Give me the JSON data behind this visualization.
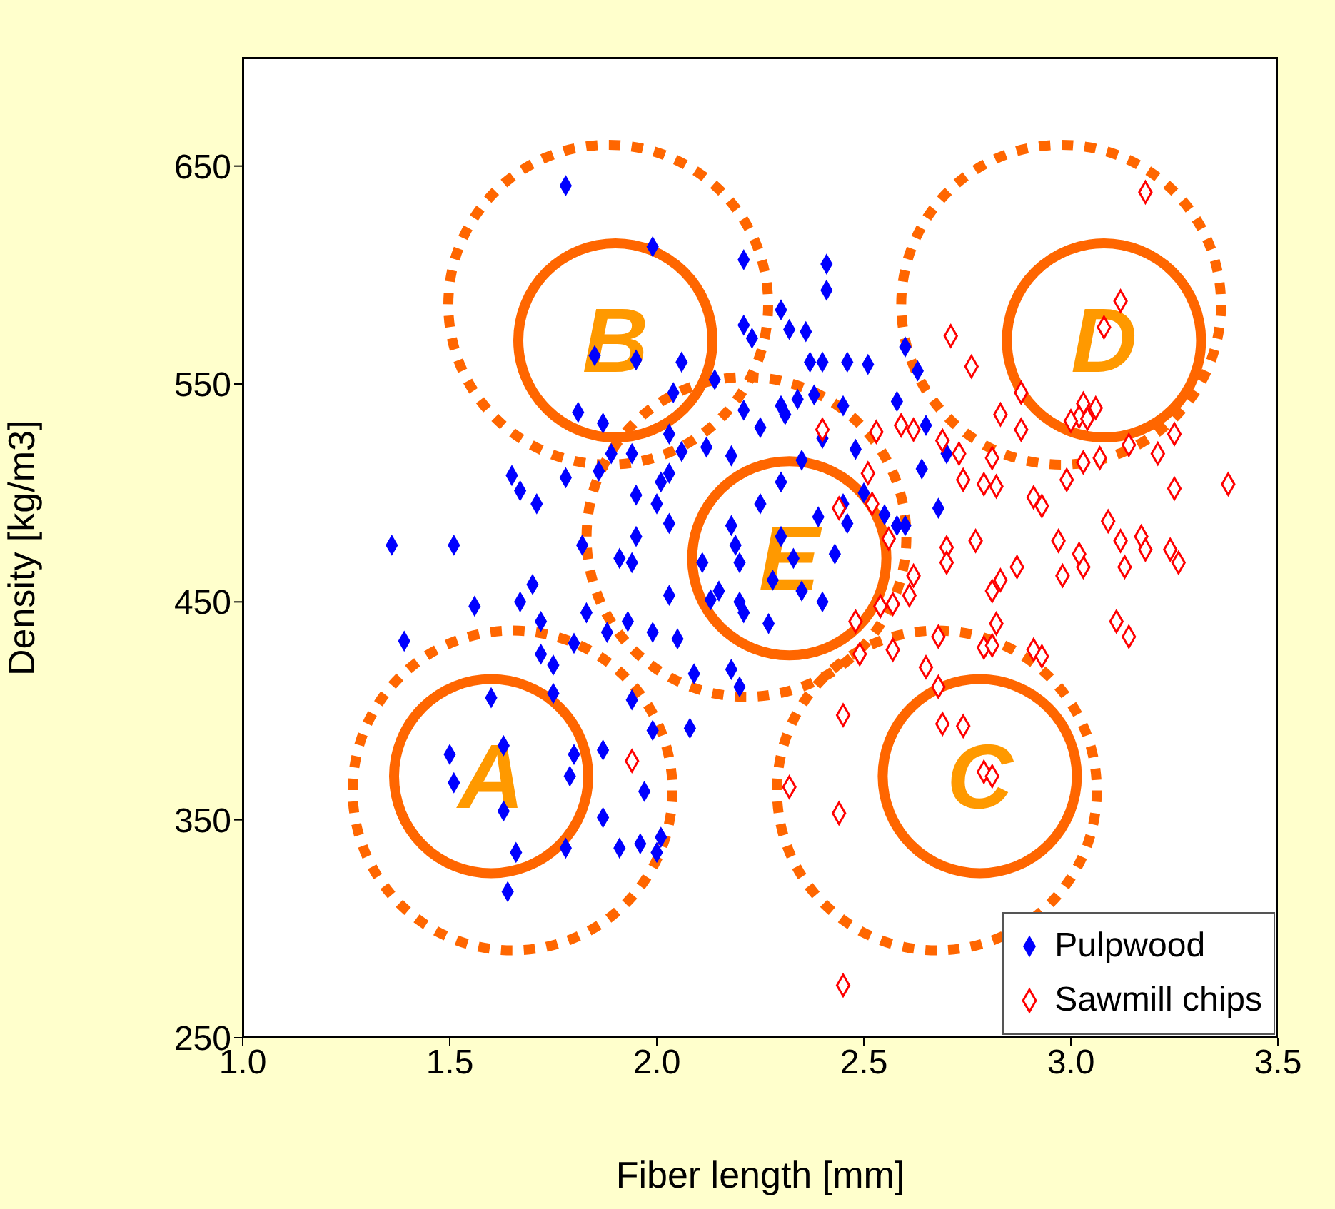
{
  "chart_data": {
    "type": "scatter",
    "xlabel": "Fiber length [mm]",
    "ylabel": "Density [kg/m3]",
    "xlim": [
      1.0,
      3.5
    ],
    "xticks": [
      {
        "value": 1.0,
        "label": "1.0"
      },
      {
        "value": 1.5,
        "label": "1.5"
      },
      {
        "value": 2.0,
        "label": "2.0"
      },
      {
        "value": 2.5,
        "label": "2.5"
      },
      {
        "value": 3.0,
        "label": "3.0"
      },
      {
        "value": 3.5,
        "label": "3.5"
      }
    ],
    "ylim": [
      250,
      700
    ],
    "yticks": [
      250,
      350,
      450,
      550,
      650
    ],
    "grid": false,
    "legend": "bottom right",
    "marker": "diamond",
    "annotations": [
      "A",
      "B",
      "C",
      "D",
      "E"
    ],
    "series": [
      {
        "name": "Pulpwood",
        "color": "#0000ff",
        "x": [
          1.78,
          1.99,
          2.21,
          2.21,
          2.23,
          1.85,
          1.95,
          2.06,
          2.04,
          2.14,
          1.81,
          1.87,
          2.03,
          2.06,
          2.12,
          1.89,
          1.94,
          1.86,
          1.78,
          1.65,
          1.67,
          1.71,
          2.03,
          2.01,
          1.95,
          2.0,
          2.03,
          1.95,
          1.82,
          1.91,
          1.94,
          1.36,
          1.51,
          2.18,
          2.19,
          2.11,
          2.2,
          2.18,
          2.21,
          1.56,
          1.39,
          1.7,
          1.67,
          1.72,
          1.8,
          1.72,
          1.75,
          1.83,
          1.88,
          1.75,
          1.6,
          1.94,
          1.99,
          2.08,
          1.5,
          1.51,
          1.63,
          1.8,
          1.87,
          1.79,
          1.63,
          1.87,
          1.97,
          1.66,
          1.78,
          1.91,
          1.96,
          2.01,
          2.0,
          1.64,
          2.09,
          2.18,
          2.2,
          1.93,
          1.99,
          2.05,
          2.13,
          2.03,
          2.21,
          2.3,
          2.35,
          2.25,
          2.3,
          2.33,
          2.28,
          2.35,
          2.4,
          2.25,
          2.3,
          2.38,
          2.4,
          2.45,
          2.48,
          2.45,
          2.5,
          2.55,
          2.6,
          2.2,
          2.15,
          2.27,
          2.32,
          2.4,
          2.41,
          2.41,
          2.3,
          2.36,
          2.37,
          2.46,
          2.51,
          2.63,
          2.6,
          2.58,
          2.65,
          2.7,
          2.64,
          2.68,
          2.43,
          2.58,
          2.46,
          2.39,
          2.34,
          2.31
        ],
        "values": [
          641,
          613,
          607,
          577,
          571,
          563,
          561,
          560,
          546,
          552,
          537,
          532,
          527,
          519,
          521,
          518,
          518,
          510,
          507,
          508,
          501,
          495,
          509,
          505,
          499,
          495,
          486,
          480,
          476,
          470,
          468,
          476,
          476,
          485,
          476,
          468,
          468,
          517,
          538,
          448,
          432,
          458,
          450,
          441,
          431,
          426,
          421,
          445,
          436,
          408,
          406,
          405,
          391,
          392,
          380,
          367,
          384,
          380,
          382,
          370,
          354,
          351,
          363,
          335,
          337,
          337,
          339,
          342,
          335,
          317,
          417,
          419,
          411,
          441,
          436,
          433,
          451,
          453,
          445,
          505,
          515,
          495,
          480,
          470,
          460,
          455,
          450,
          530,
          540,
          545,
          525,
          540,
          520,
          495,
          500,
          490,
          485,
          450,
          455,
          440,
          575,
          560,
          605,
          593,
          584,
          574,
          560,
          560,
          559,
          556,
          567,
          542,
          531,
          518,
          511,
          493,
          472,
          485,
          486,
          489,
          543,
          536
        ]
      },
      {
        "name": "Sawmill chips",
        "color": "#ff0000",
        "x": [
          3.18,
          3.12,
          3.08,
          2.71,
          2.76,
          2.88,
          2.83,
          2.88,
          3.03,
          3.06,
          3.02,
          3.0,
          3.04,
          3.14,
          3.21,
          3.25,
          3.03,
          3.07,
          3.38,
          3.25,
          2.99,
          2.81,
          2.82,
          2.91,
          2.93,
          3.09,
          3.12,
          3.17,
          3.18,
          3.24,
          3.26,
          3.13,
          3.03,
          2.98,
          2.97,
          3.02,
          2.87,
          2.77,
          2.7,
          2.79,
          2.74,
          2.69,
          2.73,
          2.51,
          2.53,
          2.59,
          2.62,
          2.4,
          2.52,
          2.44,
          2.56,
          2.7,
          2.62,
          2.81,
          2.83,
          2.54,
          2.57,
          2.61,
          2.48,
          2.68,
          2.82,
          2.79,
          2.81,
          2.91,
          2.93,
          3.11,
          3.14,
          2.49,
          2.57,
          2.65,
          2.68,
          2.45,
          2.69,
          2.74,
          2.79,
          2.81,
          2.32,
          2.44,
          2.45,
          1.94
        ],
        "values": [
          638,
          588,
          576,
          572,
          558,
          546,
          536,
          529,
          541,
          539,
          535,
          533,
          534,
          522,
          518,
          527,
          514,
          516,
          504,
          502,
          506,
          516,
          503,
          498,
          494,
          487,
          478,
          480,
          474,
          474,
          468,
          466,
          466,
          462,
          478,
          472,
          466,
          478,
          475,
          504,
          506,
          524,
          518,
          509,
          528,
          531,
          529,
          529,
          495,
          493,
          479,
          468,
          462,
          455,
          460,
          448,
          449,
          453,
          441,
          434,
          440,
          429,
          430,
          428,
          425,
          441,
          434,
          426,
          428,
          420,
          411,
          398,
          394,
          393,
          372,
          370,
          365,
          353,
          274,
          377
        ]
      }
    ]
  }
}
